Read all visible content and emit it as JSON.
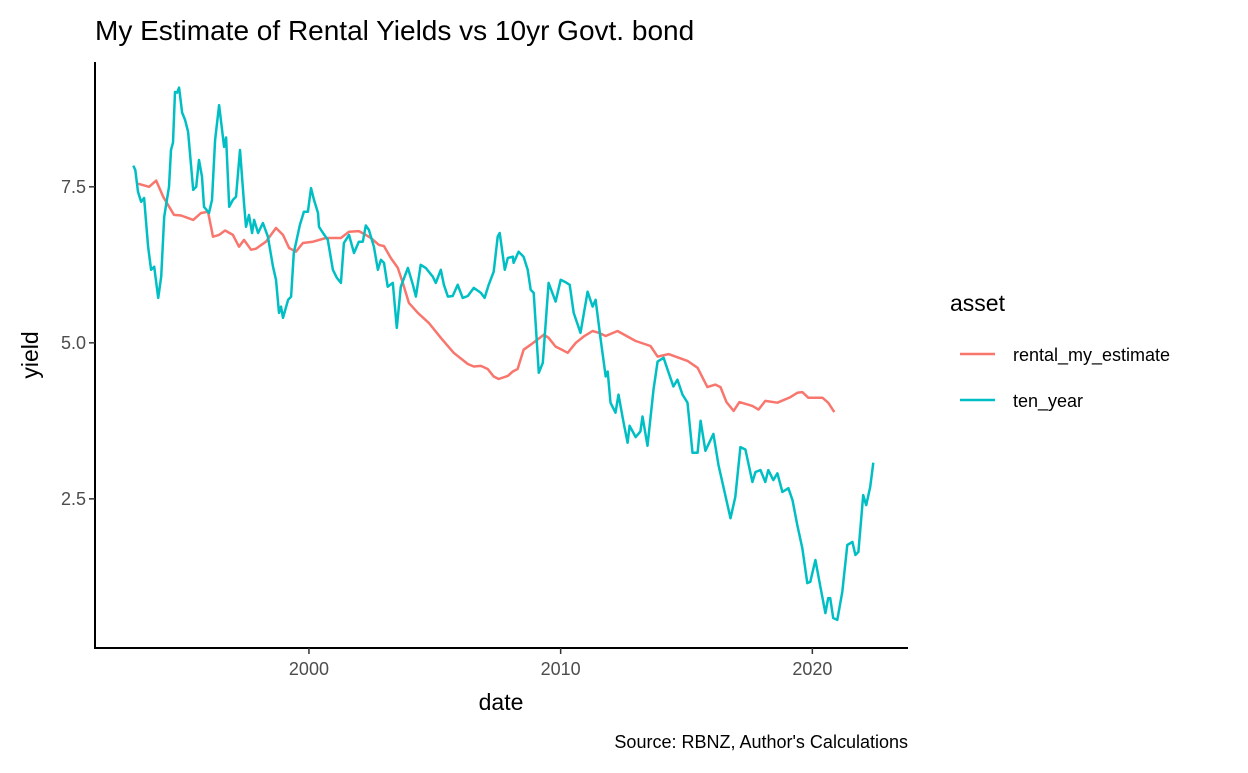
{
  "chart_data": {
    "type": "line",
    "title": "My Estimate of Rental Yields vs 10yr Govt. bond",
    "xlabel": "date",
    "ylabel": "yield",
    "caption": "Source: RBNZ, Author's Calculations",
    "xlim": [
      1991.5,
      2023.8
    ],
    "ylim": [
      0.11,
      9.5
    ],
    "xticks": [
      2000,
      2010,
      2020
    ],
    "xtick_labels": [
      "2000",
      "2010",
      "2020"
    ],
    "yticks": [
      2.5,
      5.0,
      7.5
    ],
    "ytick_labels": [
      "2.5",
      "5.0",
      "7.5"
    ],
    "grid": false,
    "legend": {
      "title": "asset",
      "placement": "right"
    },
    "series": [
      {
        "name": "rental_my_estimate",
        "color": "#F8766D",
        "x": [
          1993.21,
          1993.65,
          1993.93,
          1994.21,
          1994.64,
          1994.92,
          1995.4,
          1995.71,
          1995.99,
          1996.19,
          1996.43,
          1996.67,
          1996.98,
          1997.22,
          1997.42,
          1997.7,
          1997.9,
          1998.29,
          1998.69,
          1998.97,
          1999.21,
          1999.48,
          1999.76,
          2000.16,
          2000.67,
          2001.27,
          2001.59,
          2001.98,
          2002.26,
          2002.46,
          2002.78,
          2002.98,
          2003.25,
          2003.53,
          2003.73,
          2003.97,
          2004.33,
          2004.76,
          2005.24,
          2005.75,
          2006.31,
          2006.55,
          2006.83,
          2007.1,
          2007.34,
          2007.54,
          2007.9,
          2008.1,
          2008.29,
          2008.53,
          2008.81,
          2009.33,
          2009.52,
          2009.8,
          2010.0,
          2010.28,
          2010.6,
          2010.91,
          2011.27,
          2011.51,
          2011.79,
          2012.26,
          2012.98,
          2013.57,
          2013.85,
          2014.29,
          2015.04,
          2015.44,
          2015.83,
          2016.15,
          2016.35,
          2016.59,
          2016.87,
          2017.1,
          2017.62,
          2017.86,
          2018.13,
          2018.61,
          2019.13,
          2019.4,
          2019.6,
          2019.84,
          2020.4,
          2020.63,
          2020.87
        ],
        "y": [
          7.55,
          7.5,
          7.6,
          7.34,
          7.05,
          7.04,
          6.97,
          7.08,
          7.1,
          6.7,
          6.73,
          6.8,
          6.73,
          6.54,
          6.65,
          6.49,
          6.51,
          6.62,
          6.84,
          6.73,
          6.52,
          6.46,
          6.6,
          6.62,
          6.68,
          6.68,
          6.78,
          6.79,
          6.73,
          6.68,
          6.57,
          6.55,
          6.36,
          6.2,
          5.96,
          5.64,
          5.48,
          5.32,
          5.08,
          4.84,
          4.66,
          4.62,
          4.63,
          4.58,
          4.46,
          4.42,
          4.47,
          4.54,
          4.58,
          4.89,
          4.97,
          5.13,
          5.08,
          4.94,
          4.9,
          4.84,
          5.0,
          5.1,
          5.19,
          5.16,
          5.11,
          5.19,
          5.03,
          4.95,
          4.78,
          4.82,
          4.71,
          4.6,
          4.29,
          4.33,
          4.29,
          4.05,
          3.91,
          4.05,
          3.99,
          3.93,
          4.07,
          4.04,
          4.13,
          4.2,
          4.21,
          4.12,
          4.12,
          4.04,
          3.89
        ]
      },
      {
        "name": "ten_year",
        "color": "#00BFC4",
        "x": [
          1993.02,
          1993.1,
          1993.21,
          1993.33,
          1993.45,
          1993.61,
          1993.73,
          1993.85,
          1994.01,
          1994.13,
          1994.25,
          1994.44,
          1994.52,
          1994.6,
          1994.68,
          1994.76,
          1994.84,
          1994.96,
          1995.08,
          1995.2,
          1995.4,
          1995.52,
          1995.63,
          1995.75,
          1995.83,
          1996.03,
          1996.15,
          1996.27,
          1996.43,
          1996.63,
          1996.71,
          1996.83,
          1996.98,
          1997.1,
          1997.26,
          1997.42,
          1997.5,
          1997.62,
          1997.74,
          1997.82,
          1997.98,
          1998.17,
          1998.37,
          1998.57,
          1998.69,
          1998.81,
          1998.89,
          1998.97,
          1999.17,
          1999.29,
          1999.4,
          1999.64,
          1999.8,
          1999.96,
          2000.08,
          2000.2,
          2000.36,
          2000.4,
          2000.56,
          2000.75,
          2000.95,
          2001.11,
          2001.27,
          2001.39,
          2001.59,
          2001.79,
          2001.98,
          2002.14,
          2002.26,
          2002.38,
          2002.58,
          2002.74,
          2002.86,
          2002.98,
          2003.13,
          2003.33,
          2003.49,
          2003.65,
          2003.93,
          2004.13,
          2004.25,
          2004.44,
          2004.64,
          2004.92,
          2005.04,
          2005.24,
          2005.36,
          2005.52,
          2005.71,
          2005.91,
          2006.11,
          2006.31,
          2006.55,
          2006.83,
          2006.98,
          2007.14,
          2007.34,
          2007.5,
          2007.58,
          2007.78,
          2007.9,
          2008.1,
          2008.13,
          2008.33,
          2008.53,
          2008.69,
          2008.81,
          2008.93,
          2009.13,
          2009.29,
          2009.52,
          2009.8,
          2010.0,
          2010.16,
          2010.36,
          2010.52,
          2010.79,
          2011.07,
          2011.27,
          2011.39,
          2011.59,
          2011.79,
          2011.87,
          2011.98,
          2012.18,
          2012.3,
          2012.5,
          2012.66,
          2012.74,
          2012.98,
          2013.17,
          2013.25,
          2013.45,
          2013.69,
          2013.85,
          2014.09,
          2014.25,
          2014.48,
          2014.64,
          2014.84,
          2015.04,
          2015.24,
          2015.44,
          2015.56,
          2015.75,
          2016.07,
          2016.27,
          2016.75,
          2016.94,
          2017.14,
          2017.34,
          2017.62,
          2017.74,
          2017.94,
          2018.13,
          2018.25,
          2018.45,
          2018.61,
          2018.81,
          2019.05,
          2019.21,
          2019.4,
          2019.6,
          2019.8,
          2019.92,
          2020.12,
          2020.32,
          2020.52,
          2020.63,
          2020.71,
          2020.83,
          2020.99,
          2021.19,
          2021.39,
          2021.59,
          2021.71,
          2021.83,
          2022.02,
          2022.14,
          2022.3,
          2022.42
        ],
        "y": [
          7.84,
          7.77,
          7.42,
          7.26,
          7.32,
          6.54,
          6.17,
          6.22,
          5.72,
          6.06,
          7.02,
          7.5,
          8.09,
          8.21,
          9.02,
          9.01,
          9.09,
          8.69,
          8.57,
          8.38,
          7.45,
          7.5,
          7.93,
          7.66,
          7.18,
          7.08,
          7.29,
          8.25,
          8.81,
          8.14,
          8.29,
          7.18,
          7.29,
          7.34,
          8.09,
          7.24,
          6.86,
          7.05,
          6.76,
          6.97,
          6.76,
          6.92,
          6.7,
          6.22,
          6.01,
          5.48,
          5.58,
          5.4,
          5.69,
          5.74,
          6.44,
          6.89,
          7.1,
          7.1,
          7.48,
          7.29,
          7.08,
          6.86,
          6.76,
          6.65,
          6.17,
          6.04,
          5.96,
          6.6,
          6.73,
          6.44,
          6.62,
          6.62,
          6.88,
          6.81,
          6.54,
          6.17,
          6.33,
          6.28,
          5.9,
          5.96,
          5.24,
          5.9,
          6.2,
          5.93,
          5.74,
          6.25,
          6.2,
          6.06,
          5.96,
          6.17,
          5.93,
          5.74,
          5.75,
          5.93,
          5.72,
          5.75,
          5.88,
          5.8,
          5.72,
          5.93,
          6.14,
          6.7,
          6.76,
          6.17,
          6.36,
          6.38,
          6.28,
          6.46,
          6.38,
          6.17,
          5.85,
          5.8,
          4.52,
          4.68,
          5.96,
          5.66,
          6.01,
          5.98,
          5.93,
          5.48,
          5.16,
          5.82,
          5.58,
          5.69,
          5.05,
          4.46,
          4.54,
          4.04,
          3.88,
          4.17,
          3.72,
          3.4,
          3.67,
          3.49,
          3.58,
          3.82,
          3.35,
          4.25,
          4.7,
          4.76,
          4.57,
          4.3,
          4.41,
          4.17,
          4.04,
          3.24,
          3.24,
          3.75,
          3.27,
          3.54,
          3.04,
          2.19,
          2.53,
          3.33,
          3.29,
          2.77,
          2.93,
          2.96,
          2.77,
          2.96,
          2.8,
          2.91,
          2.61,
          2.67,
          2.48,
          2.08,
          1.71,
          1.15,
          1.17,
          1.52,
          1.09,
          0.67,
          0.91,
          0.91,
          0.59,
          0.56,
          1.01,
          1.76,
          1.81,
          1.6,
          1.65,
          2.56,
          2.4,
          2.69,
          3.08
        ]
      }
    ]
  }
}
